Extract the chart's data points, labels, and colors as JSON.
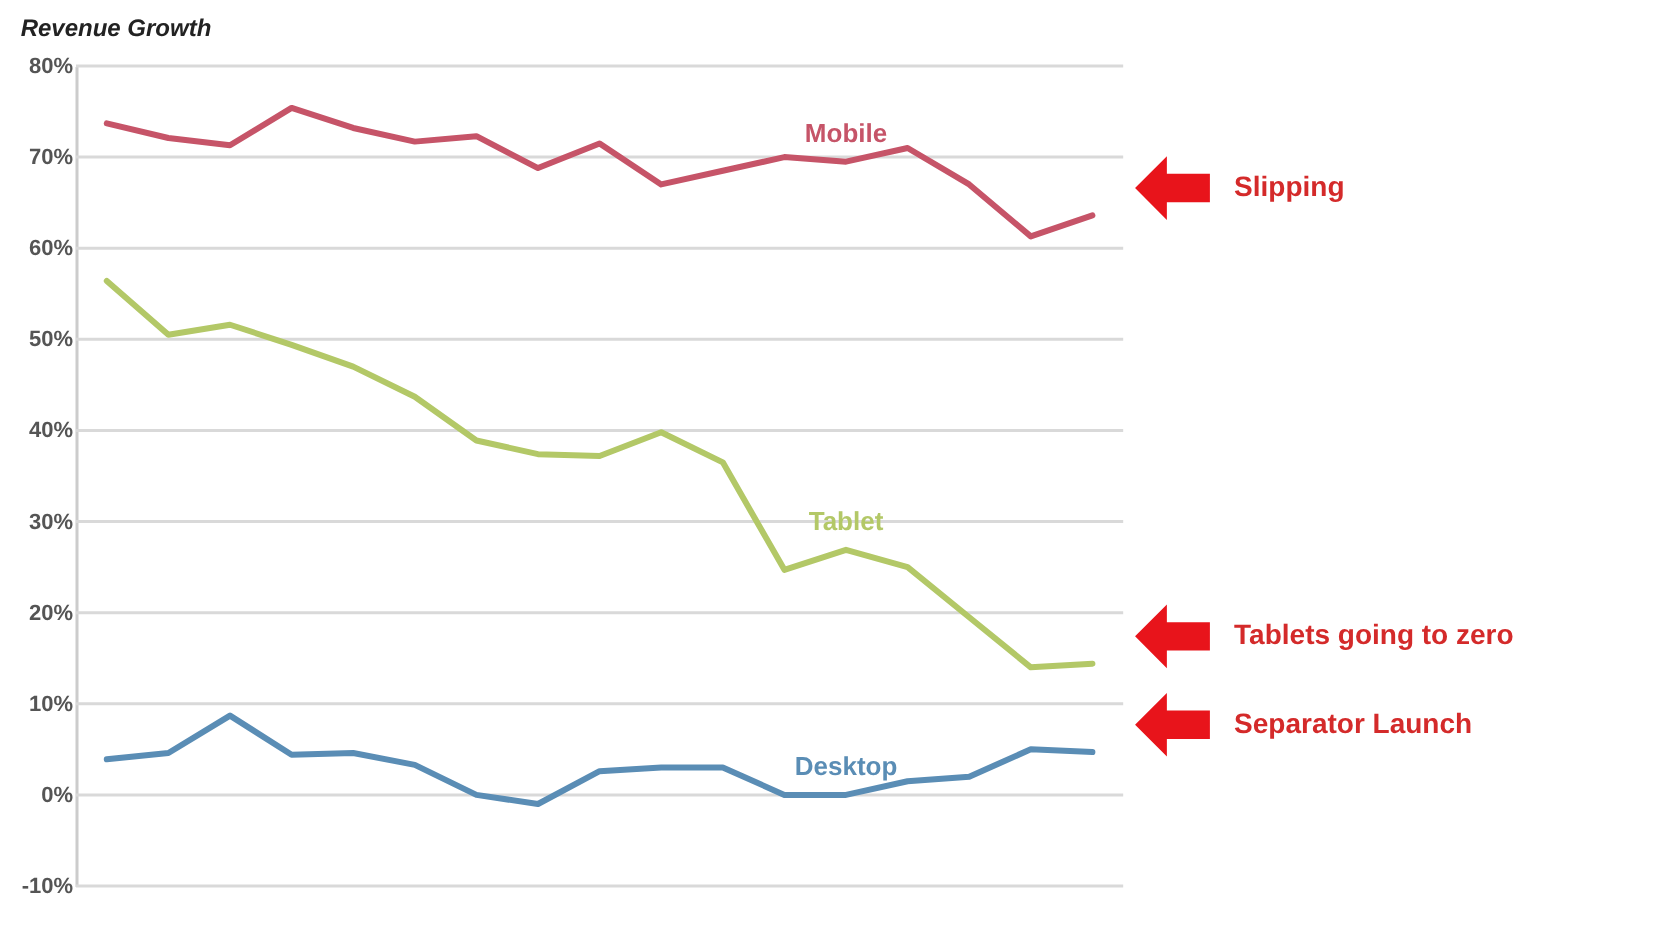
{
  "chart_data": {
    "type": "line",
    "title": "Revenue Growth",
    "categories": [
      null,
      null,
      null,
      null,
      null,
      null,
      null,
      null,
      null,
      null,
      null,
      null,
      null,
      null,
      null,
      null,
      null
    ],
    "series": [
      {
        "name": "Mobile",
        "color": "#c65468",
        "values": [
          73.7,
          72.1,
          71.3,
          75.4,
          73.2,
          71.7,
          72.3,
          68.8,
          71.5,
          67,
          68.5,
          70,
          69.5,
          71,
          67,
          61.3,
          63.6
        ]
      },
      {
        "name": "Tablet",
        "color": "#b3c867",
        "values": [
          56.4,
          50.5,
          51.6,
          49.4,
          47,
          43.7,
          38.9,
          37.4,
          37.2,
          39.8,
          36.5,
          24.7,
          26.9,
          25,
          19.5,
          14,
          14.4
        ]
      },
      {
        "name": "Desktop",
        "color": "#5a8db5",
        "values": [
          3.9,
          4.6,
          8.7,
          4.4,
          4.6,
          3.3,
          0,
          -1,
          2.6,
          3,
          3,
          0,
          0,
          1.5,
          2,
          5,
          4.7
        ]
      }
    ],
    "ylim": [
      -10,
      80
    ],
    "yticks": [
      {
        "value": -10,
        "label": "-10%"
      },
      {
        "value": 0,
        "label": "0%"
      },
      {
        "value": 10,
        "label": "10%"
      },
      {
        "value": 20,
        "label": "20%"
      },
      {
        "value": 30,
        "label": "30%"
      },
      {
        "value": 40,
        "label": "40%"
      },
      {
        "value": 50,
        "label": "50%"
      },
      {
        "value": 60,
        "label": "60%"
      },
      {
        "value": 70,
        "label": "70%"
      },
      {
        "value": 80,
        "label": "80%"
      }
    ],
    "grid": "y",
    "tick_labels": "y",
    "legend": false,
    "line_style": "solid",
    "annotations": [
      "Slipping",
      "Tablets going to zero",
      "Separator Launch"
    ]
  }
}
